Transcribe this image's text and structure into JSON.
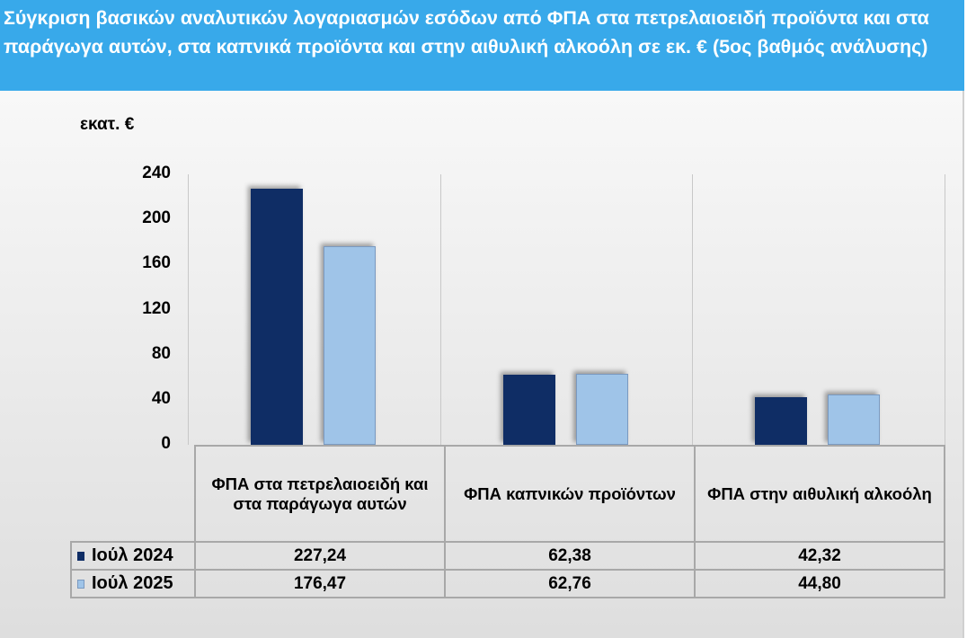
{
  "header": {
    "title": "Σύγκριση βασικών αναλυτικών λογαριασμών εσόδων από ΦΠΑ στα πετρελαιοειδή προϊόντα και στα παράγωγα αυτών, στα καπνικά προϊόντα και στην αιθυλική αλκοόλη σε εκ. € (5ος βαθμός ανάλυσης)"
  },
  "colors": {
    "header_bg": "#38a9ea",
    "series_2024": "#0f2d65",
    "series_2025": "#9fc4e8"
  },
  "chart_data": {
    "type": "bar",
    "title": "Σύγκριση βασικών αναλυτικών λογαριασμών εσόδων από ΦΠΑ στα πετρελαιοειδή προϊόντα και στα παράγωγα αυτών, στα καπνικά προϊόντα και στην αιθυλική αλκοόλη σε εκ. € (5ος βαθμός ανάλυσης)",
    "ylabel": "εκατ. €",
    "xlabel": "",
    "ylim": [
      0,
      240
    ],
    "yticks": [
      "0",
      "40",
      "80",
      "120",
      "160",
      "200",
      "240"
    ],
    "grid": "vertical category separators",
    "legend_position": "data table",
    "categories": [
      "ΦΠΑ στα πετρελαιοειδή και στα παράγωγα αυτών",
      "ΦΠΑ καπνικών προϊόντων",
      "ΦΠΑ στην αιθυλική αλκοόλη"
    ],
    "series": [
      {
        "name": "Ιούλ 2024",
        "values": [
          227.24,
          62.38,
          42.32
        ],
        "labels": [
          "227,24",
          "62,38",
          "42,32"
        ]
      },
      {
        "name": "Ιούλ 2025",
        "values": [
          176.47,
          62.76,
          44.8
        ],
        "labels": [
          "176,47",
          "62,76",
          "44,80"
        ]
      }
    ]
  }
}
